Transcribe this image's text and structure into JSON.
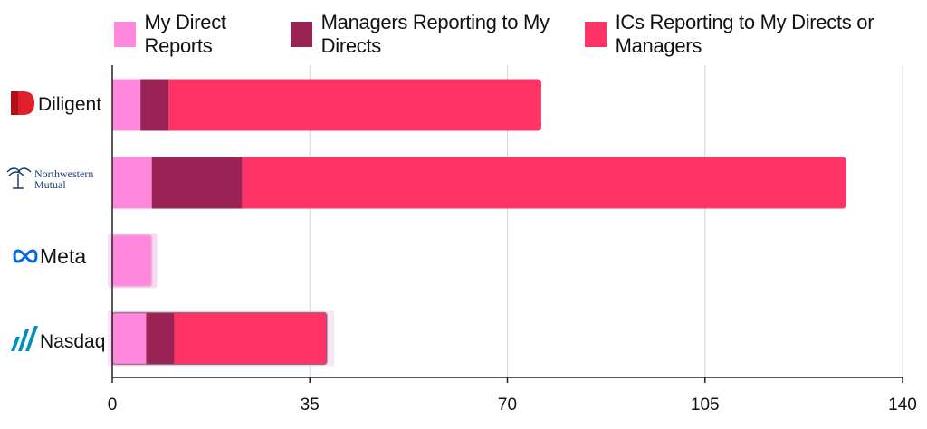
{
  "chart_data": {
    "type": "bar",
    "orientation": "horizontal",
    "stacked": true,
    "categories": [
      "Diligent",
      "Northwestern Mutual",
      "Meta",
      "Nasdaq"
    ],
    "series": [
      {
        "name": "My Direct Reports",
        "color": "#ff88dc",
        "values": [
          5,
          7,
          7,
          6
        ]
      },
      {
        "name": "Managers Reporting to My Directs",
        "color": "#9b2255",
        "values": [
          5,
          16,
          0,
          5
        ]
      },
      {
        "name": "ICs Reporting to My Directs or Managers",
        "color": "#ff3366",
        "values": [
          66,
          107,
          0,
          27
        ]
      }
    ],
    "xticks": [
      "0",
      "35",
      "70",
      "105",
      "140"
    ],
    "xlim": [
      0,
      140
    ],
    "grid": true,
    "legend_position": "top"
  },
  "logos": {
    "diligent": {
      "name": "Diligent",
      "icon": "diligent-d-icon"
    },
    "northwestern": {
      "line1": "Northwestern",
      "line2": "Mutual",
      "icon": "fountain-icon"
    },
    "meta": {
      "name": "Meta",
      "icon": "infinity-icon"
    },
    "nasdaq": {
      "name": "Nasdaq",
      "icon": "nasdaq-bars-icon"
    }
  }
}
